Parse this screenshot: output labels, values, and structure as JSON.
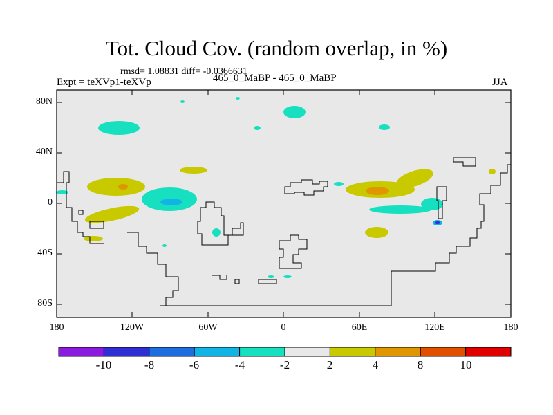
{
  "title": "Tot. Cloud Cov. (random overlap, in %)",
  "stats": "rmsd= 1.08831 diff= -0.0366631",
  "experiment": "Expt = teXVp1-teXVp",
  "case_label": "465_0_MaBP - 465_0_MaBP",
  "season": "JJA",
  "axes": {
    "lat_ticks": [
      "80N",
      "40N",
      "0",
      "40S",
      "80S"
    ],
    "lon_ticks": [
      "180",
      "120W",
      "60W",
      "0",
      "60E",
      "120E",
      "180"
    ]
  },
  "colorbar": {
    "labels": [
      "-10",
      "-8",
      "-6",
      "-4",
      "-2",
      "2",
      "4",
      "8",
      "10"
    ],
    "colors": [
      "#8a1ce0",
      "#2f2fd6",
      "#1e6ee0",
      "#12b4e6",
      "#17e0c0",
      "#e8e8e8",
      "#c9c900",
      "#e09600",
      "#e05000",
      "#e00000"
    ]
  },
  "colors": {
    "background_field": "#e8e8e8",
    "positive_small": "#c9c900",
    "positive_mid": "#e09600",
    "negative_small": "#17e0c0",
    "negative_mid": "#12b4e6",
    "negative_large": "#1e6ee0"
  }
}
